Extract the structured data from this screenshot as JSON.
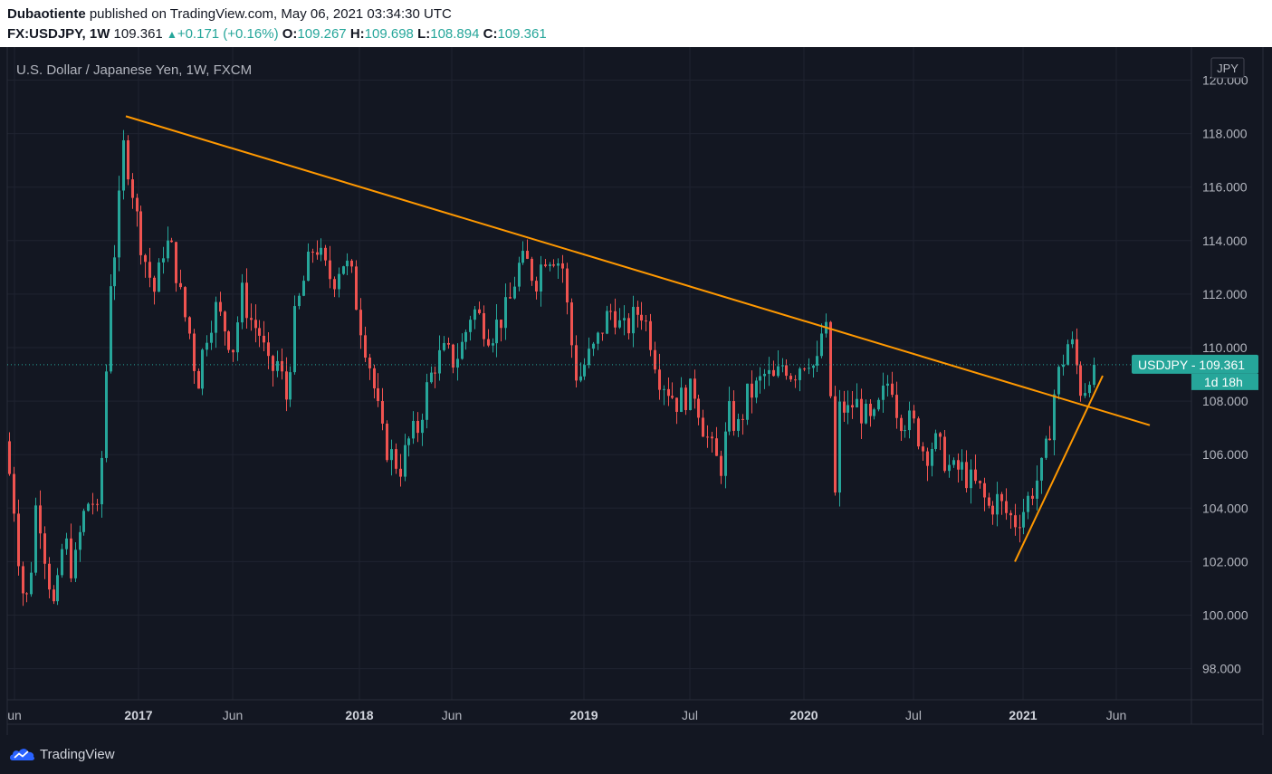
{
  "header": {
    "publisher": "Dubaotiente",
    "published_text": "published on TradingView.com, May 06, 2021 03:34:30 UTC",
    "symbol": "FX:USDJPY, 1W",
    "last": "109.361",
    "change": "+0.171 (+0.16%)",
    "open_label": "O:",
    "open": "109.267",
    "high_label": "H:",
    "high": "109.698",
    "low_label": "L:",
    "low": "108.894",
    "close_label": "C:",
    "close": "109.361"
  },
  "chart_data": {
    "type": "candlestick",
    "title": "U.S. Dollar / Japanese Yen, 1W, FXCM",
    "currency_label": "JPY",
    "price_label": {
      "text": "USDJPY  -  109.361",
      "countdown": "1d 18h",
      "value": 109.361
    },
    "ylim": [
      96.0,
      120.8
    ],
    "y_ticks": [
      "120.000",
      "118.000",
      "116.000",
      "114.000",
      "112.000",
      "110.000",
      "108.000",
      "106.000",
      "104.000",
      "102.000",
      "100.000",
      "98.000"
    ],
    "x_ticks": [
      {
        "label": "un",
        "bold": false
      },
      {
        "label": "2017",
        "bold": true
      },
      {
        "label": "Jun",
        "bold": false
      },
      {
        "label": "2018",
        "bold": true
      },
      {
        "label": "Jun",
        "bold": false
      },
      {
        "label": "2019",
        "bold": true
      },
      {
        "label": "Jul",
        "bold": false
      },
      {
        "label": "2020",
        "bold": true
      },
      {
        "label": "Jul",
        "bold": false
      },
      {
        "label": "2021",
        "bold": true
      },
      {
        "label": "Jun",
        "bold": false
      }
    ],
    "anchors": [
      {
        "x": 10,
        "y": 106.5
      },
      {
        "x": 20,
        "y": 104.0
      },
      {
        "x": 28,
        "y": 101.0
      },
      {
        "x": 36,
        "y": 100.5
      },
      {
        "x": 45,
        "y": 104.5
      },
      {
        "x": 55,
        "y": 102.0
      },
      {
        "x": 65,
        "y": 100.0
      },
      {
        "x": 75,
        "y": 103.0
      },
      {
        "x": 85,
        "y": 101.5
      },
      {
        "x": 95,
        "y": 103.5
      },
      {
        "x": 105,
        "y": 104.5
      },
      {
        "x": 113,
        "y": 103.5
      },
      {
        "x": 120,
        "y": 108.0
      },
      {
        "x": 126,
        "y": 112.5
      },
      {
        "x": 133,
        "y": 114.0
      },
      {
        "x": 141,
        "y": 117.5
      },
      {
        "x": 148,
        "y": 116.5
      },
      {
        "x": 157,
        "y": 114.5
      },
      {
        "x": 167,
        "y": 113.0
      },
      {
        "x": 176,
        "y": 112.0
      },
      {
        "x": 186,
        "y": 114.0
      },
      {
        "x": 196,
        "y": 113.5
      },
      {
        "x": 206,
        "y": 111.5
      },
      {
        "x": 214,
        "y": 110.5
      },
      {
        "x": 222,
        "y": 108.6
      },
      {
        "x": 232,
        "y": 110.5
      },
      {
        "x": 242,
        "y": 111.5
      },
      {
        "x": 252,
        "y": 110.8
      },
      {
        "x": 262,
        "y": 110.0
      },
      {
        "x": 272,
        "y": 112.0
      },
      {
        "x": 282,
        "y": 111.0
      },
      {
        "x": 292,
        "y": 110.5
      },
      {
        "x": 302,
        "y": 109.0
      },
      {
        "x": 312,
        "y": 109.5
      },
      {
        "x": 320,
        "y": 108.0
      },
      {
        "x": 330,
        "y": 111.0
      },
      {
        "x": 340,
        "y": 112.5
      },
      {
        "x": 352,
        "y": 114.0
      },
      {
        "x": 362,
        "y": 113.0
      },
      {
        "x": 372,
        "y": 112.5
      },
      {
        "x": 382,
        "y": 113.3
      },
      {
        "x": 392,
        "y": 112.8
      },
      {
        "x": 402,
        "y": 111.0
      },
      {
        "x": 412,
        "y": 109.5
      },
      {
        "x": 420,
        "y": 108.0
      },
      {
        "x": 428,
        "y": 106.5
      },
      {
        "x": 436,
        "y": 106.0
      },
      {
        "x": 446,
        "y": 105.5
      },
      {
        "x": 456,
        "y": 106.5
      },
      {
        "x": 466,
        "y": 107.0
      },
      {
        "x": 476,
        "y": 108.5
      },
      {
        "x": 486,
        "y": 109.5
      },
      {
        "x": 496,
        "y": 109.8
      },
      {
        "x": 506,
        "y": 109.5
      },
      {
        "x": 516,
        "y": 110.2
      },
      {
        "x": 526,
        "y": 111.5
      },
      {
        "x": 536,
        "y": 111.0
      },
      {
        "x": 546,
        "y": 110.5
      },
      {
        "x": 556,
        "y": 111.0
      },
      {
        "x": 566,
        "y": 111.5
      },
      {
        "x": 576,
        "y": 113.0
      },
      {
        "x": 586,
        "y": 113.2
      },
      {
        "x": 596,
        "y": 112.5
      },
      {
        "x": 606,
        "y": 113.5
      },
      {
        "x": 616,
        "y": 113.5
      },
      {
        "x": 626,
        "y": 113.0
      },
      {
        "x": 634,
        "y": 110.5
      },
      {
        "x": 642,
        "y": 108.7
      },
      {
        "x": 652,
        "y": 109.5
      },
      {
        "x": 662,
        "y": 110.0
      },
      {
        "x": 672,
        "y": 111.0
      },
      {
        "x": 682,
        "y": 111.5
      },
      {
        "x": 692,
        "y": 110.5
      },
      {
        "x": 702,
        "y": 111.0
      },
      {
        "x": 712,
        "y": 111.5
      },
      {
        "x": 722,
        "y": 110.5
      },
      {
        "x": 732,
        "y": 109.0
      },
      {
        "x": 742,
        "y": 108.5
      },
      {
        "x": 752,
        "y": 108.0
      },
      {
        "x": 762,
        "y": 108.2
      },
      {
        "x": 772,
        "y": 108.4
      },
      {
        "x": 782,
        "y": 107.0
      },
      {
        "x": 792,
        "y": 106.0
      },
      {
        "x": 800,
        "y": 105.5
      },
      {
        "x": 810,
        "y": 107.5
      },
      {
        "x": 820,
        "y": 107.0
      },
      {
        "x": 830,
        "y": 108.2
      },
      {
        "x": 840,
        "y": 108.5
      },
      {
        "x": 850,
        "y": 109.0
      },
      {
        "x": 860,
        "y": 108.7
      },
      {
        "x": 870,
        "y": 109.5
      },
      {
        "x": 880,
        "y": 109.0
      },
      {
        "x": 890,
        "y": 109.5
      },
      {
        "x": 898,
        "y": 109.7
      },
      {
        "x": 906,
        "y": 109.0
      },
      {
        "x": 914,
        "y": 111.0
      },
      {
        "x": 920,
        "y": 110.0
      },
      {
        "x": 926,
        "y": 104.0
      },
      {
        "x": 932,
        "y": 108.0
      },
      {
        "x": 940,
        "y": 107.5
      },
      {
        "x": 948,
        "y": 108.0
      },
      {
        "x": 958,
        "y": 107.5
      },
      {
        "x": 968,
        "y": 107.0
      },
      {
        "x": 978,
        "y": 108.0
      },
      {
        "x": 988,
        "y": 109.0
      },
      {
        "x": 996,
        "y": 107.5
      },
      {
        "x": 1006,
        "y": 107.3
      },
      {
        "x": 1016,
        "y": 107.0
      },
      {
        "x": 1026,
        "y": 106.0
      },
      {
        "x": 1036,
        "y": 106.5
      },
      {
        "x": 1046,
        "y": 106.0
      },
      {
        "x": 1056,
        "y": 105.3
      },
      {
        "x": 1066,
        "y": 105.5
      },
      {
        "x": 1076,
        "y": 105.0
      },
      {
        "x": 1086,
        "y": 104.7
      },
      {
        "x": 1096,
        "y": 104.0
      },
      {
        "x": 1106,
        "y": 104.3
      },
      {
        "x": 1116,
        "y": 103.8
      },
      {
        "x": 1126,
        "y": 103.5
      },
      {
        "x": 1136,
        "y": 104.0
      },
      {
        "x": 1146,
        "y": 104.8
      },
      {
        "x": 1156,
        "y": 105.5
      },
      {
        "x": 1162,
        "y": 106.5
      },
      {
        "x": 1170,
        "y": 108.5
      },
      {
        "x": 1178,
        "y": 109.5
      },
      {
        "x": 1186,
        "y": 110.4
      },
      {
        "x": 1194,
        "y": 109.2
      },
      {
        "x": 1200,
        "y": 108.2
      },
      {
        "x": 1205,
        "y": 108.8
      },
      {
        "x": 1210,
        "y": 109.36
      }
    ],
    "trendlines": [
      {
        "name": "descending-resistance",
        "color": "#ff9800",
        "x1": 139,
        "y1": 118.65,
        "x2": 1270,
        "y2": 107.1
      },
      {
        "name": "ascending-support",
        "color": "#ff9800",
        "x1": 1121,
        "y1": 102.0,
        "x2": 1218,
        "y2": 108.95
      }
    ]
  },
  "footer": {
    "brand": "TradingView"
  },
  "colors": {
    "background": "#131722",
    "up": "#26a69a",
    "down": "#ef5350",
    "trendline": "#ff9800",
    "grid": "#1f2330",
    "axis_text": "#b2b5be"
  }
}
